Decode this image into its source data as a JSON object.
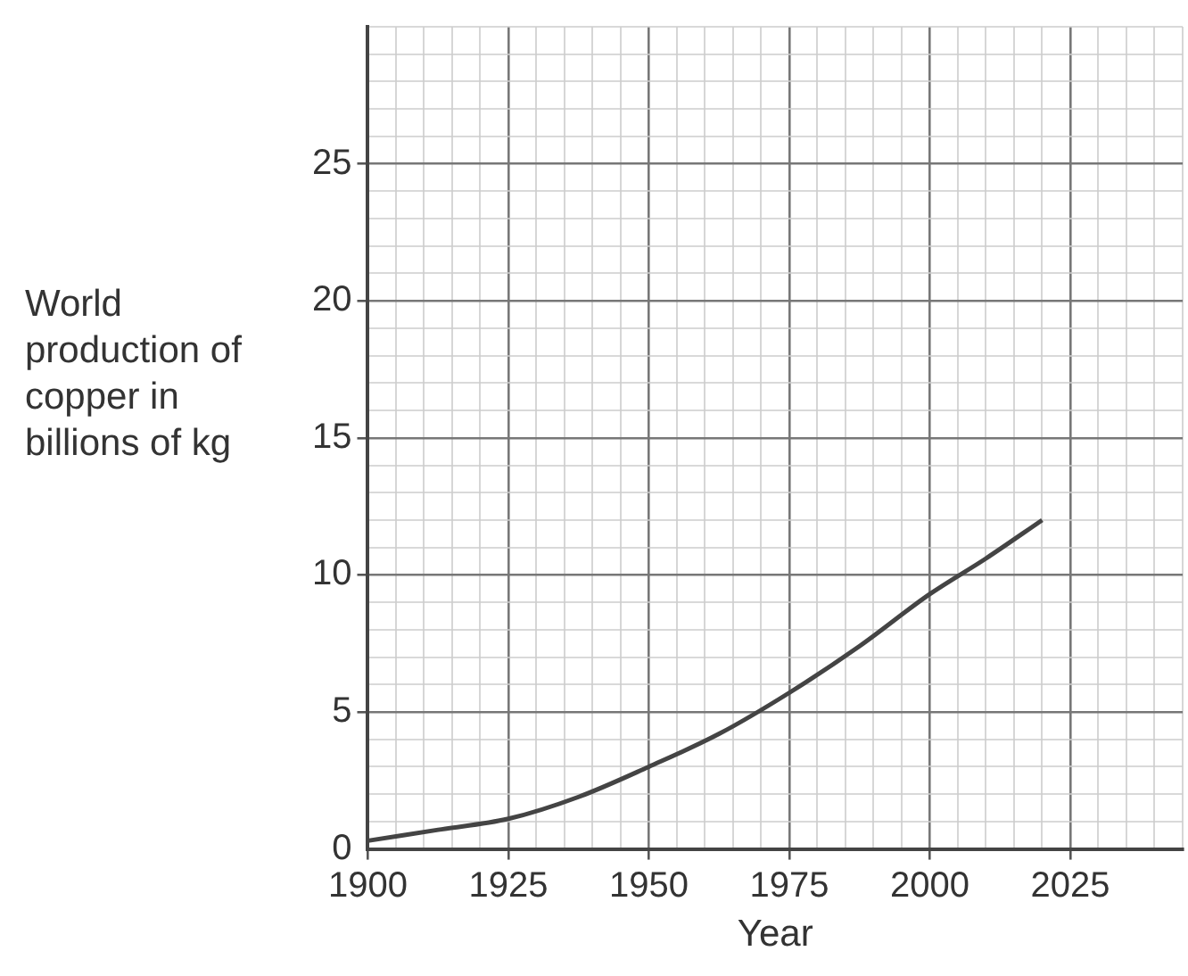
{
  "chart_data": {
    "type": "line",
    "xlabel": "Year",
    "ylabel": "World production of copper in billions of kg",
    "x": [
      1900,
      1912.5,
      1925,
      1937.5,
      1950,
      1962.5,
      1975,
      1987.5,
      2000,
      2010,
      2020
    ],
    "series": [
      {
        "color": "#444444",
        "values": [
          0.3,
          0.7,
          1.1,
          1.9,
          3.0,
          4.2,
          5.7,
          7.4,
          9.3,
          10.6,
          12.0
        ]
      }
    ],
    "xlim": [
      1900,
      2045
    ],
    "xticks": [
      1900,
      {
        "value": 1905,
        "label": null
      },
      {
        "value": 1910,
        "label": null
      },
      {
        "value": 1915,
        "label": null
      },
      {
        "value": 1920,
        "label": null
      },
      1925,
      {
        "value": 1930,
        "label": null
      },
      {
        "value": 1935,
        "label": null
      },
      {
        "value": 1940,
        "label": null
      },
      {
        "value": 1945,
        "label": null
      },
      1950,
      {
        "value": 1955,
        "label": null
      },
      {
        "value": 1960,
        "label": null
      },
      {
        "value": 1965,
        "label": null
      },
      {
        "value": 1970,
        "label": null
      },
      1975,
      {
        "value": 1980,
        "label": null
      },
      {
        "value": 1985,
        "label": null
      },
      {
        "value": 1990,
        "label": null
      },
      {
        "value": 1995,
        "label": null
      },
      2000,
      {
        "value": 2005,
        "label": null
      },
      {
        "value": 2010,
        "label": null
      },
      {
        "value": 2015,
        "label": null
      },
      {
        "value": 2020,
        "label": null
      },
      2025,
      {
        "value": 2030,
        "label": null
      },
      {
        "value": 2035,
        "label": null
      },
      {
        "value": 2040,
        "label": null
      },
      {
        "value": 2045,
        "label": null
      }
    ],
    "ylim": [
      0,
      30
    ],
    "yticks": [
      0,
      {
        "value": 1,
        "label": null
      },
      {
        "value": 2,
        "label": null
      },
      {
        "value": 3,
        "label": null
      },
      {
        "value": 4,
        "label": null
      },
      5,
      {
        "value": 6,
        "label": null
      },
      {
        "value": 7,
        "label": null
      },
      {
        "value": 8,
        "label": null
      },
      {
        "value": 9,
        "label": null
      },
      10,
      {
        "value": 11,
        "label": null
      },
      {
        "value": 12,
        "label": null
      },
      {
        "value": 13,
        "label": null
      },
      {
        "value": 14,
        "label": null
      },
      15,
      {
        "value": 16,
        "label": null
      },
      {
        "value": 17,
        "label": null
      },
      {
        "value": 18,
        "label": null
      },
      {
        "value": 19,
        "label": null
      },
      20,
      {
        "value": 21,
        "label": null
      },
      {
        "value": 22,
        "label": null
      },
      {
        "value": 23,
        "label": null
      },
      {
        "value": 24,
        "label": null
      },
      25,
      {
        "value": 26,
        "label": null
      },
      {
        "value": 27,
        "label": null
      },
      {
        "value": 28,
        "label": null
      },
      {
        "value": 29,
        "label": null
      },
      {
        "value": 30,
        "label": null
      }
    ],
    "grid": true,
    "marker": "none",
    "line_style": "solid",
    "legend": false
  }
}
